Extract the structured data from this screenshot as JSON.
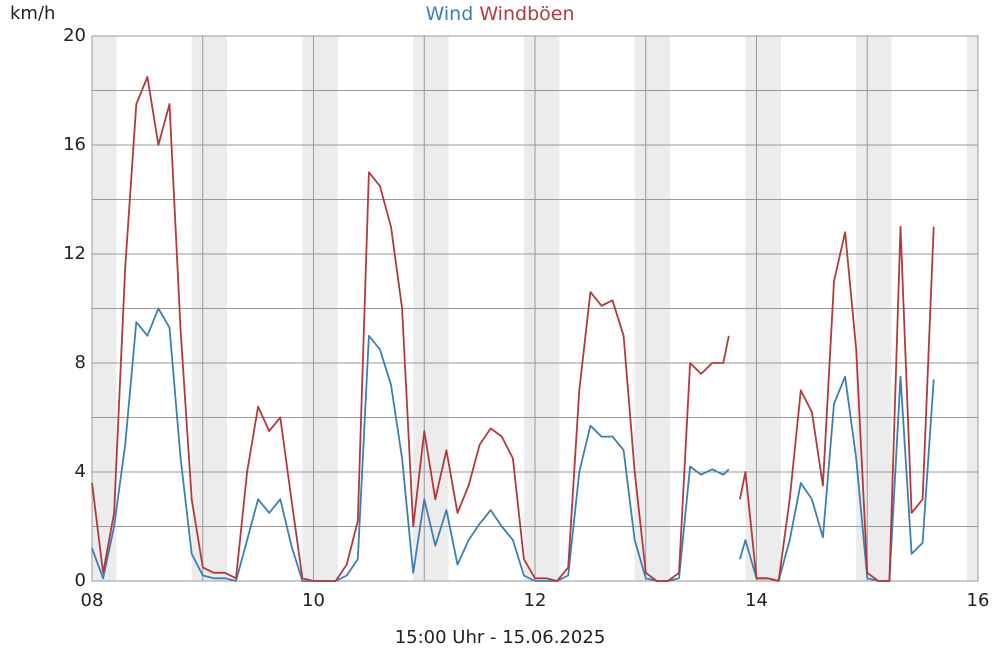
{
  "chart_data": {
    "type": "line",
    "y_label": "km/h",
    "x_label": "15:00 Uhr - 15.06.2025",
    "x": [
      8.0,
      8.1,
      8.2,
      8.3,
      8.4,
      8.5,
      8.6,
      8.7,
      8.8,
      8.9,
      9.0,
      9.1,
      9.2,
      9.3,
      9.4,
      9.5,
      9.6,
      9.7,
      9.8,
      9.9,
      10.0,
      10.1,
      10.2,
      10.3,
      10.4,
      10.5,
      10.6,
      10.7,
      10.8,
      10.9,
      11.0,
      11.1,
      11.2,
      11.3,
      11.4,
      11.5,
      11.6,
      11.7,
      11.8,
      11.9,
      12.0,
      12.1,
      12.2,
      12.3,
      12.4,
      12.5,
      12.6,
      12.7,
      12.8,
      12.9,
      13.0,
      13.1,
      13.2,
      13.3,
      13.4,
      13.5,
      13.6,
      13.7,
      13.75,
      13.8,
      13.85,
      13.9,
      14.0,
      14.1,
      14.2,
      14.3,
      14.4,
      14.5,
      14.6,
      14.7,
      14.8,
      14.9,
      15.0,
      15.1,
      15.2,
      15.3,
      15.4,
      15.5,
      15.6
    ],
    "series": [
      {
        "name": "Wind",
        "color": "#3d7fb5",
        "values": [
          1.2,
          0.1,
          2,
          5,
          9.5,
          9,
          10,
          9.3,
          4.5,
          1,
          0.2,
          0.1,
          0.1,
          0,
          1.5,
          3,
          2.5,
          3,
          1.3,
          0,
          0,
          0,
          0,
          0.2,
          0.8,
          9,
          8.5,
          7.2,
          4.5,
          0.3,
          3,
          1.3,
          2.6,
          0.6,
          1.5,
          2.1,
          2.6,
          2,
          1.5,
          0.2,
          0,
          0,
          0,
          0.2,
          4,
          5.7,
          5.3,
          5.3,
          4.8,
          1.5,
          0.1,
          0,
          0,
          0.1,
          4.2,
          3.9,
          4.1,
          3.9,
          4.1,
          null,
          0.8,
          1.5,
          0.1,
          0.1,
          0,
          1.5,
          3.6,
          3,
          1.6,
          6.5,
          7.5,
          4.5,
          0.1,
          0,
          0,
          7.5,
          1,
          1.4,
          7.4
        ]
      },
      {
        "name": "Windböen",
        "color": "#b23a3e",
        "values": [
          3.6,
          0.3,
          2.5,
          11.5,
          17.5,
          18.5,
          16,
          17.5,
          9.2,
          3,
          0.5,
          0.3,
          0.3,
          0.1,
          4,
          6.4,
          5.5,
          6,
          3,
          0.1,
          0,
          0,
          0,
          0.6,
          2.2,
          15,
          14.5,
          13,
          10,
          2,
          5.5,
          3,
          4.8,
          2.5,
          3.5,
          5,
          5.6,
          5.3,
          4.5,
          0.8,
          0.1,
          0.1,
          0,
          0.5,
          7,
          10.6,
          10.1,
          10.3,
          9,
          4,
          0.3,
          0,
          0,
          0.3,
          8,
          7.6,
          8,
          8,
          9,
          null,
          3,
          4,
          0.1,
          0.1,
          0,
          3,
          7,
          6.2,
          3.5,
          11,
          12.8,
          8.5,
          0.3,
          0,
          0,
          13,
          2.5,
          3,
          13
        ]
      }
    ],
    "xlim": [
      8,
      16
    ],
    "xticks": [
      {
        "value": 8,
        "label": "08"
      },
      {
        "value": 10,
        "label": "10"
      },
      {
        "value": 12,
        "label": "12"
      },
      {
        "value": 14,
        "label": "14"
      },
      {
        "value": 16,
        "label": "16"
      }
    ],
    "xminor": [
      9,
      11,
      13,
      15
    ],
    "ylim": [
      0,
      20
    ],
    "yticks": [
      0,
      4,
      8,
      12,
      16,
      20
    ],
    "yminor": [
      2,
      6,
      10,
      14,
      18
    ],
    "grid": true
  }
}
